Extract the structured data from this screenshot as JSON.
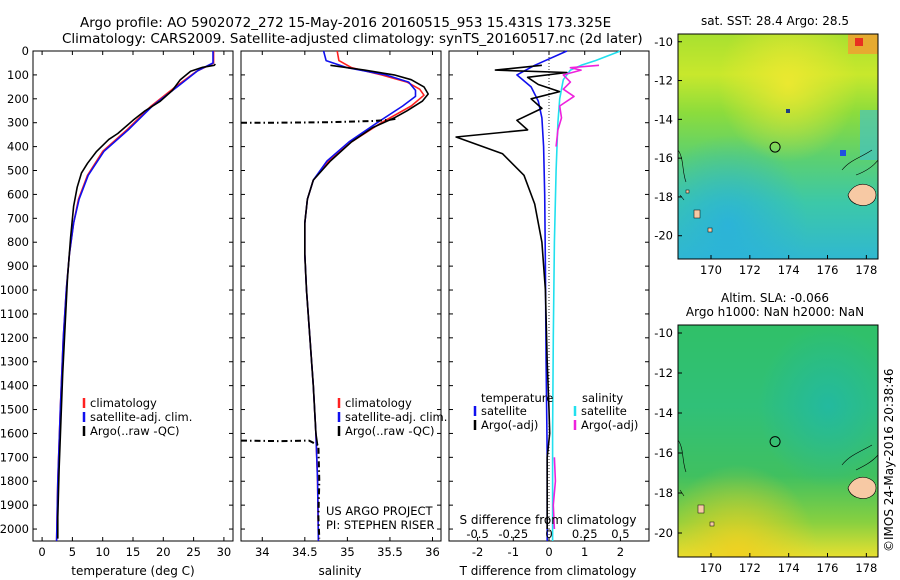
{
  "titles": {
    "line1": "Argo profile: AO 5902072_272 15-May-2016 20160515_953 15.431S 173.325E",
    "line2": "Climatology: CARS2009. Satellite-adjusted climatology: synTS_20160517.nc (2d later)"
  },
  "colors": {
    "climatology": "#ff2020",
    "satellite_clim": "#1010ee",
    "argo": "#000000",
    "sat_salinity": "#22e0ee",
    "argo_salinity_adj": "#ee22dd",
    "land": "#f7c9a4"
  },
  "depth_axis": {
    "ylim": [
      0,
      2050
    ],
    "ticks": [
      0,
      100,
      200,
      300,
      400,
      500,
      600,
      700,
      800,
      900,
      1000,
      1100,
      1200,
      1300,
      1400,
      1500,
      1600,
      1700,
      1800,
      1900,
      2000
    ]
  },
  "chart_data": [
    {
      "type": "line",
      "panel": "temperature",
      "xlabel": "temperature (deg C)",
      "xlim": [
        -1.5,
        31.5
      ],
      "xticks": [
        0,
        5,
        10,
        15,
        20,
        25,
        30
      ],
      "legend": [
        "climatology",
        "satellite-adj. clim.",
        "Argo(..raw -QC)"
      ],
      "series": [
        {
          "name": "climatology",
          "style": "solid",
          "points": [
            [
              28.3,
              0
            ],
            [
              28.3,
              50
            ],
            [
              25.5,
              85
            ],
            [
              22,
              150
            ],
            [
              18,
              230
            ],
            [
              14,
              330
            ],
            [
              10,
              420
            ],
            [
              7.5,
              520
            ],
            [
              6,
              620
            ],
            [
              5.2,
              720
            ],
            [
              4.5,
              850
            ],
            [
              4,
              1000
            ],
            [
              3.5,
              1200
            ],
            [
              3,
              1500
            ],
            [
              2.6,
              1800
            ],
            [
              2.4,
              2050
            ]
          ]
        },
        {
          "name": "satellite-adj. clim.",
          "style": "solid",
          "points": [
            [
              28.2,
              0
            ],
            [
              28.2,
              50
            ],
            [
              25.7,
              82
            ],
            [
              22.3,
              150
            ],
            [
              18.2,
              230
            ],
            [
              14.2,
              330
            ],
            [
              10.2,
              420
            ],
            [
              7.6,
              520
            ],
            [
              6.1,
              620
            ],
            [
              5.2,
              720
            ],
            [
              4.5,
              850
            ],
            [
              4,
              1000
            ],
            [
              3.5,
              1200
            ],
            [
              3,
              1500
            ],
            [
              2.6,
              1800
            ],
            [
              2.4,
              2050
            ]
          ]
        },
        {
          "name": "Argo(..raw -QC)",
          "style": "solid",
          "points": [
            [
              28.6,
              55
            ],
            [
              28.4,
              60
            ],
            [
              26.5,
              68
            ],
            [
              24.5,
              85
            ],
            [
              22.8,
              120
            ],
            [
              21.5,
              165
            ],
            [
              19.5,
              210
            ],
            [
              17,
              250
            ],
            [
              15,
              290
            ],
            [
              12.5,
              345
            ],
            [
              11,
              370
            ],
            [
              9,
              420
            ],
            [
              7.5,
              470
            ],
            [
              6.5,
              510
            ],
            [
              5.8,
              570
            ],
            [
              5.2,
              650
            ],
            [
              4.7,
              780
            ],
            [
              4.2,
              950
            ],
            [
              3.8,
              1150
            ],
            [
              3.4,
              1350
            ],
            [
              3.1,
              1550
            ],
            [
              2.8,
              1750
            ],
            [
              2.6,
              1950
            ],
            [
              2.6,
              2040
            ]
          ]
        }
      ]
    },
    {
      "type": "line",
      "panel": "salinity",
      "xlabel": "salinity",
      "xlim": [
        33.75,
        36.1
      ],
      "xticks": [
        34,
        34.5,
        35,
        35.5,
        36
      ],
      "legend": [
        "climatology",
        "satellite-adj. clim.",
        "Argo(..raw -QC)"
      ],
      "annotations": [
        "US ARGO PROJECT",
        "PI: STEPHEN RISER"
      ],
      "series": [
        {
          "name": "climatology",
          "style": "solid",
          "points": [
            [
              34.88,
              0
            ],
            [
              34.9,
              40
            ],
            [
              35.05,
              70
            ],
            [
              35.4,
              100
            ],
            [
              35.7,
              130
            ],
            [
              35.85,
              160
            ],
            [
              35.9,
              185
            ],
            [
              35.75,
              230
            ],
            [
              35.4,
              300
            ],
            [
              35.05,
              380
            ],
            [
              34.78,
              460
            ],
            [
              34.6,
              540
            ],
            [
              34.53,
              620
            ],
            [
              34.5,
              720
            ],
            [
              34.5,
              850
            ],
            [
              34.52,
              1000
            ],
            [
              34.56,
              1200
            ],
            [
              34.6,
              1400
            ],
            [
              34.63,
              1600
            ],
            [
              34.65,
              1800
            ],
            [
              34.66,
              2050
            ]
          ]
        },
        {
          "name": "satellite-adj. clim.",
          "style": "solid",
          "points": [
            [
              34.72,
              0
            ],
            [
              34.75,
              40
            ],
            [
              35.0,
              70
            ],
            [
              35.45,
              100
            ],
            [
              35.72,
              130
            ],
            [
              35.8,
              165
            ],
            [
              35.8,
              190
            ],
            [
              35.65,
              230
            ],
            [
              35.35,
              300
            ],
            [
              35.02,
              380
            ],
            [
              34.76,
              460
            ],
            [
              34.6,
              540
            ],
            [
              34.53,
              620
            ],
            [
              34.5,
              720
            ],
            [
              34.5,
              850
            ],
            [
              34.52,
              1000
            ],
            [
              34.56,
              1200
            ],
            [
              34.6,
              1400
            ],
            [
              34.63,
              1600
            ],
            [
              34.65,
              1800
            ],
            [
              34.66,
              2050
            ]
          ]
        },
        {
          "name": "Argo(..raw -QC)",
          "style": "solid",
          "points": [
            [
              34.8,
              60
            ],
            [
              35.2,
              80
            ],
            [
              35.55,
              100
            ],
            [
              35.75,
              120
            ],
            [
              35.9,
              150
            ],
            [
              35.95,
              180
            ],
            [
              35.88,
              210
            ],
            [
              35.7,
              250
            ],
            [
              35.55,
              280
            ],
            [
              35.3,
              320
            ],
            [
              35.05,
              380
            ],
            [
              34.8,
              460
            ],
            [
              34.6,
              540
            ],
            [
              34.53,
              620
            ],
            [
              34.5,
              720
            ],
            [
              34.5,
              850
            ],
            [
              34.52,
              1000
            ],
            [
              34.56,
              1200
            ],
            [
              34.6,
              1400
            ],
            [
              34.63,
              1600
            ],
            [
              34.65,
              1650
            ]
          ]
        },
        {
          "name": "Argo(..raw -QC) dash-dot (upper)",
          "style": "dashdot",
          "points": [
            [
              33.75,
              300
            ],
            [
              34.2,
              300
            ],
            [
              34.8,
              298
            ],
            [
              35.3,
              293
            ],
            [
              35.5,
              288
            ],
            [
              35.6,
              282
            ]
          ]
        },
        {
          "name": "Argo(..raw -QC) dash-dot (lower)",
          "style": "dashdot",
          "points": [
            [
              33.75,
              1630
            ],
            [
              34.2,
              1632
            ],
            [
              34.55,
              1630
            ],
            [
              34.66,
              1650
            ],
            [
              34.67,
              1800
            ],
            [
              34.66,
              1950
            ],
            [
              34.67,
              2040
            ]
          ]
        }
      ]
    },
    {
      "type": "line",
      "panel": "differences",
      "xlabel": "T difference from climatology",
      "xlim": [
        -2.8,
        2.8
      ],
      "xticks": [
        -2,
        -1,
        0,
        1,
        2
      ],
      "top_axis_label": "S difference from climatology",
      "top_ticks": [
        "-0.5",
        "-0.25",
        "0",
        "0.25",
        "0.5"
      ],
      "top_tick_positions": [
        -2,
        -1,
        0,
        1,
        2
      ],
      "legend": [
        "temperature",
        "satellite",
        "Argo(-adj)",
        "salinity",
        "satellite",
        "Argo(-adj)"
      ],
      "series": [
        {
          "name": "temperature satellite",
          "style": "solid",
          "points": [
            [
              0.5,
              0
            ],
            [
              -0.4,
              60
            ],
            [
              -0.9,
              100
            ],
            [
              -0.5,
              150
            ],
            [
              -0.3,
              210
            ],
            [
              -0.2,
              280
            ],
            [
              -0.15,
              400
            ],
            [
              -0.12,
              600
            ],
            [
              -0.1,
              900
            ],
            [
              -0.08,
              1300
            ],
            [
              -0.05,
              1700
            ],
            [
              -0.05,
              2050
            ]
          ]
        },
        {
          "name": "temperature Argo(-adj)",
          "style": "solid",
          "points": [
            [
              -0.2,
              60
            ],
            [
              -1.5,
              80
            ],
            [
              0.5,
              90
            ],
            [
              -0.6,
              110
            ],
            [
              -0.3,
              140
            ],
            [
              0.3,
              170
            ],
            [
              -0.5,
              200
            ],
            [
              -0.2,
              240
            ],
            [
              -0.9,
              290
            ],
            [
              -0.6,
              330
            ],
            [
              -2.6,
              360
            ],
            [
              -1.3,
              430
            ],
            [
              -0.7,
              520
            ],
            [
              -0.4,
              640
            ],
            [
              -0.2,
              800
            ],
            [
              -0.1,
              1000
            ],
            [
              -0.05,
              1300
            ],
            [
              0,
              1500
            ],
            [
              0.02,
              1600
            ],
            [
              -0.05,
              1700
            ],
            [
              -0.05,
              2000
            ]
          ]
        },
        {
          "name": "salinity satellite",
          "style": "solid",
          "points": [
            [
              2.0,
              0
            ],
            [
              1.3,
              40
            ],
            [
              0.9,
              60
            ],
            [
              0.6,
              80
            ],
            [
              0.4,
              120
            ],
            [
              0.3,
              200
            ],
            [
              0.25,
              300
            ],
            [
              0.2,
              500
            ],
            [
              0.15,
              800
            ],
            [
              0.12,
              1200
            ],
            [
              0.1,
              1600
            ],
            [
              0.1,
              2050
            ]
          ]
        },
        {
          "name": "salinity Argo(-adj)",
          "style": "solid",
          "points": [
            [
              1.4,
              60
            ],
            [
              0.6,
              70
            ],
            [
              0.9,
              80
            ],
            [
              0.4,
              100
            ],
            [
              0.6,
              130
            ],
            [
              0.4,
              160
            ],
            [
              0.7,
              190
            ],
            [
              0.3,
              230
            ],
            [
              0.35,
              280
            ],
            [
              0.25,
              330
            ],
            [
              0.2,
              400
            ]
          ]
        },
        {
          "name": "salinity Argo(-adj) deep",
          "style": "solid",
          "points": [
            [
              0.15,
              1700
            ],
            [
              0.18,
              1800
            ],
            [
              0.12,
              1900
            ],
            [
              0.15,
              2000
            ]
          ]
        }
      ]
    }
  ],
  "map_top": {
    "title": "sat. SST: 28.4  Argo: 28.5",
    "x_ticks": [
      "170",
      "172",
      "174",
      "176",
      "178"
    ],
    "y_ticks": [
      "-10",
      "-12",
      "-14",
      "-16",
      "-18",
      "-20"
    ],
    "marker_lon": 173.3,
    "marker_lat": -15.43
  },
  "map_bottom": {
    "title_line1": "Altim. SLA: -0.066",
    "title_line2": "Argo h1000: NaN  h2000: NaN",
    "x_ticks": [
      "170",
      "172",
      "174",
      "176",
      "178"
    ],
    "y_ticks": [
      "-10",
      "-12",
      "-14",
      "-16",
      "-18",
      "-20"
    ],
    "marker_lon": 173.3,
    "marker_lat": -15.43
  },
  "credit": "©IMOS 24-May-2016 20:38:46"
}
